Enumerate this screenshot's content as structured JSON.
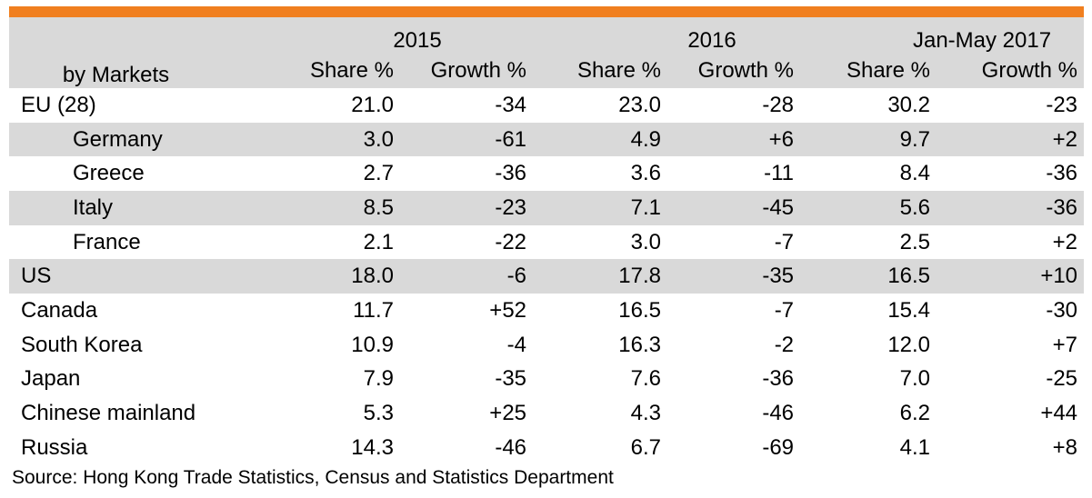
{
  "header": {
    "market_label": "by Markets",
    "years": [
      "2015",
      "2016",
      "Jan-May 2017"
    ],
    "share_label": "Share %",
    "growth_label": "Growth %"
  },
  "rows": [
    {
      "market": "EU (28)",
      "s2015": "21.0",
      "g2015": "-34",
      "s2016": "23.0",
      "g2016": "-28",
      "s2017": "30.2",
      "g2017": "-23"
    },
    {
      "market": "Germany",
      "s2015": "3.0",
      "g2015": "-61",
      "s2016": "4.9",
      "g2016": "+6",
      "s2017": "9.7",
      "g2017": "+2"
    },
    {
      "market": "Greece",
      "s2015": "2.7",
      "g2015": "-36",
      "s2016": "3.6",
      "g2016": "-11",
      "s2017": "8.4",
      "g2017": "-36"
    },
    {
      "market": "Italy",
      "s2015": "8.5",
      "g2015": "-23",
      "s2016": "7.1",
      "g2016": "-45",
      "s2017": "5.6",
      "g2017": "-36"
    },
    {
      "market": "France",
      "s2015": "2.1",
      "g2015": "-22",
      "s2016": "3.0",
      "g2016": "-7",
      "s2017": "2.5",
      "g2017": "+2"
    },
    {
      "market": "US",
      "s2015": "18.0",
      "g2015": "-6",
      "s2016": "17.8",
      "g2016": "-35",
      "s2017": "16.5",
      "g2017": "+10"
    },
    {
      "market": "Canada",
      "s2015": "11.7",
      "g2015": "+52",
      "s2016": "16.5",
      "g2016": "-7",
      "s2017": "15.4",
      "g2017": "-30"
    },
    {
      "market": "South Korea",
      "s2015": "10.9",
      "g2015": "-4",
      "s2016": "16.3",
      "g2016": "-2",
      "s2017": "12.0",
      "g2017": "+7"
    },
    {
      "market": "Japan",
      "s2015": "7.9",
      "g2015": "-35",
      "s2016": "7.6",
      "g2016": "-36",
      "s2017": "7.0",
      "g2017": "-25"
    },
    {
      "market": "Chinese mainland",
      "s2015": "5.3",
      "g2015": "+25",
      "s2016": "4.3",
      "g2016": "-46",
      "s2017": "6.2",
      "g2017": "+44"
    },
    {
      "market": "Russia",
      "s2015": "14.3",
      "g2015": "-46",
      "s2016": "6.7",
      "g2016": "-69",
      "s2017": "4.1",
      "g2017": "+8"
    }
  ],
  "source": "Source: Hong Kong Trade Statistics, Census and Statistics Department",
  "colors": {
    "accent_bar": "#f07f1f",
    "shade": "#d9d9d9"
  }
}
